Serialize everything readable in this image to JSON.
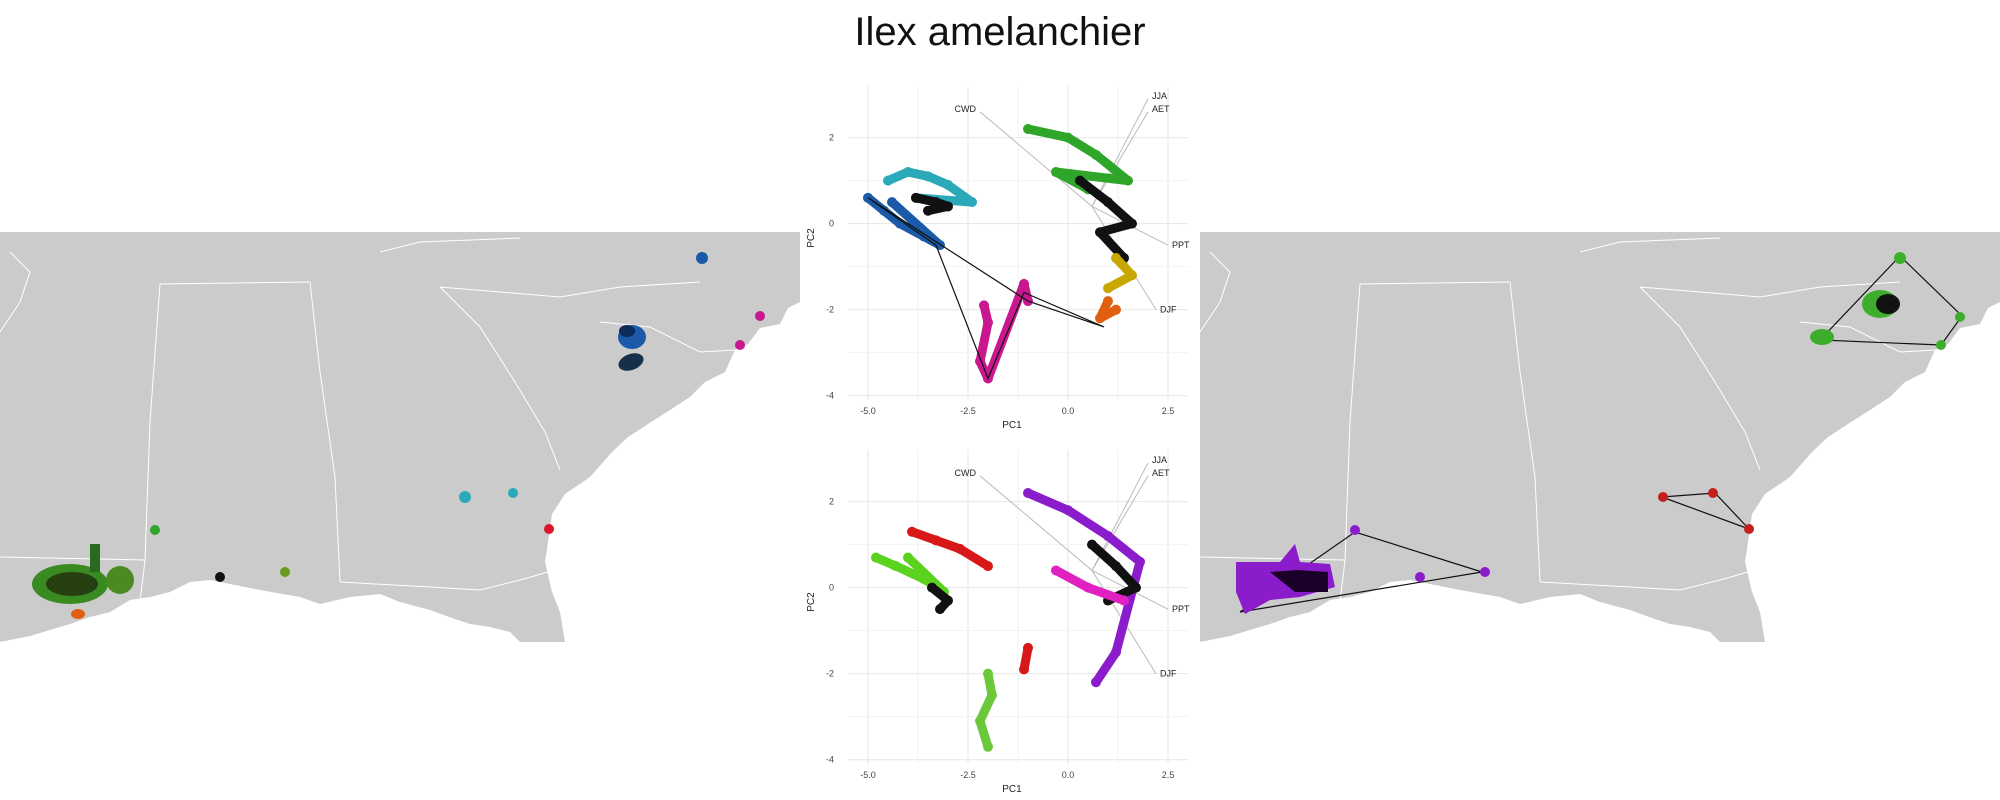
{
  "title": "Ilex amelanchier",
  "pca_plots": [
    {
      "id": "top",
      "xlabel": "PC1",
      "ylabel": "PC2",
      "xticks": [
        "-5.0",
        "-2.5",
        "0.0",
        "2.5"
      ],
      "yticks": [
        "2",
        "0",
        "-2",
        "-4"
      ],
      "vectors": [
        "JJA",
        "AET",
        "CWD",
        "PPT",
        "DJF"
      ]
    },
    {
      "id": "bottom",
      "xlabel": "PC1",
      "ylabel": "PC2",
      "xticks": [
        "-5.0",
        "-2.5",
        "0.0",
        "2.5"
      ],
      "yticks": [
        "2",
        "0",
        "-2",
        "-4"
      ],
      "vectors": [
        "JJA",
        "AET",
        "CWD",
        "PPT",
        "DJF"
      ]
    }
  ],
  "chart_data": [
    {
      "type": "scatter",
      "panel": "top PCA",
      "xlabel": "PC1",
      "ylabel": "PC2",
      "xlim": [
        -5.5,
        3.0
      ],
      "ylim": [
        -4.1,
        3.2
      ],
      "clusters": [
        {
          "color": "#2aa9b8",
          "points": [
            [
              -4.5,
              1.0
            ],
            [
              -4.0,
              1.2
            ],
            [
              -3.5,
              1.1
            ],
            [
              -3.0,
              0.9
            ],
            [
              -2.4,
              0.5
            ],
            [
              -3.8,
              0.6
            ]
          ]
        },
        {
          "color": "#1a5aa8",
          "points": [
            [
              -5.0,
              0.6
            ],
            [
              -4.6,
              0.3
            ],
            [
              -4.2,
              0.0
            ],
            [
              -3.6,
              -0.3
            ],
            [
              -3.2,
              -0.5
            ],
            [
              -4.4,
              0.5
            ]
          ]
        },
        {
          "color": "#111111",
          "points": [
            [
              -3.8,
              0.6
            ],
            [
              -3.3,
              0.5
            ],
            [
              -3.0,
              0.4
            ],
            [
              -3.5,
              0.3
            ]
          ]
        },
        {
          "color": "#2fa52a",
          "points": [
            [
              -1.0,
              2.2
            ],
            [
              0.0,
              2.0
            ],
            [
              0.7,
              1.6
            ],
            [
              1.5,
              1.0
            ],
            [
              -0.3,
              1.2
            ],
            [
              0.5,
              0.8
            ]
          ]
        },
        {
          "color": "#111111",
          "points": [
            [
              0.3,
              1.0
            ],
            [
              1.0,
              0.5
            ],
            [
              1.6,
              0.0
            ],
            [
              0.8,
              -0.2
            ],
            [
              1.4,
              -0.8
            ]
          ]
        },
        {
          "color": "#c8a800",
          "points": [
            [
              1.2,
              -0.8
            ],
            [
              1.6,
              -1.2
            ],
            [
              1.0,
              -1.5
            ]
          ]
        },
        {
          "color": "#e06010",
          "points": [
            [
              1.0,
              -1.8
            ],
            [
              0.8,
              -2.2
            ],
            [
              1.2,
              -2.0
            ]
          ]
        },
        {
          "color": "#c8178f",
          "points": [
            [
              -2.1,
              -1.9
            ],
            [
              -2.0,
              -2.3
            ],
            [
              -2.2,
              -3.2
            ],
            [
              -2.0,
              -3.6
            ],
            [
              -1.1,
              -1.4
            ],
            [
              -1.0,
              -1.8
            ]
          ]
        }
      ],
      "hull": [
        [
          -5.0,
          0.6
        ],
        [
          -3.3,
          -0.5
        ],
        [
          -2.0,
          -3.6
        ],
        [
          -1.1,
          -1.6
        ],
        [
          0.9,
          -2.4
        ],
        [
          -1.0,
          -1.8
        ]
      ]
    },
    {
      "type": "scatter",
      "panel": "bottom PCA",
      "xlabel": "PC1",
      "ylabel": "PC2",
      "xlim": [
        -5.5,
        3.0
      ],
      "ylim": [
        -4.1,
        3.2
      ],
      "clusters": [
        {
          "color": "#d81818",
          "points": [
            [
              -3.9,
              1.3
            ],
            [
              -3.3,
              1.1
            ],
            [
              -2.7,
              0.9
            ],
            [
              -2.0,
              0.5
            ]
          ]
        },
        {
          "color": "#5ad21e",
          "points": [
            [
              -4.8,
              0.7
            ],
            [
              -4.3,
              0.5
            ],
            [
              -3.6,
              0.2
            ],
            [
              -3.1,
              -0.1
            ],
            [
              -4.0,
              0.7
            ]
          ]
        },
        {
          "color": "#111111",
          "points": [
            [
              -3.4,
              0.0
            ],
            [
              -3.0,
              -0.3
            ],
            [
              -3.2,
              -0.5
            ]
          ]
        },
        {
          "color": "#8b1ccc",
          "points": [
            [
              -1.0,
              2.2
            ],
            [
              0.0,
              1.8
            ],
            [
              1.0,
              1.2
            ],
            [
              1.8,
              0.6
            ],
            [
              1.2,
              -1.5
            ],
            [
              0.7,
              -2.2
            ]
          ]
        },
        {
          "color": "#111111",
          "points": [
            [
              0.6,
              1.0
            ],
            [
              1.2,
              0.5
            ],
            [
              1.7,
              0.0
            ],
            [
              1.0,
              -0.3
            ]
          ]
        },
        {
          "color": "#e020c0",
          "points": [
            [
              -0.3,
              0.4
            ],
            [
              0.5,
              0.0
            ],
            [
              1.4,
              -0.3
            ]
          ]
        },
        {
          "color": "#d81818",
          "points": [
            [
              -1.0,
              -1.4
            ],
            [
              -1.1,
              -1.9
            ]
          ]
        },
        {
          "color": "#6ac83a",
          "points": [
            [
              -2.0,
              -2.0
            ],
            [
              -1.9,
              -2.5
            ],
            [
              -2.2,
              -3.1
            ],
            [
              -2.0,
              -3.7
            ]
          ]
        }
      ]
    }
  ],
  "maps": {
    "left": {
      "type": "range map",
      "colors": [
        "#2fa52a",
        "#111111",
        "#e06010",
        "#1a5aa8",
        "#2aa9b8",
        "#c8178f",
        "#d81828"
      ]
    },
    "right": {
      "type": "range map",
      "colors": [
        "#8b1ccc",
        "#3cae2c",
        "#c42020",
        "#111111"
      ]
    }
  }
}
